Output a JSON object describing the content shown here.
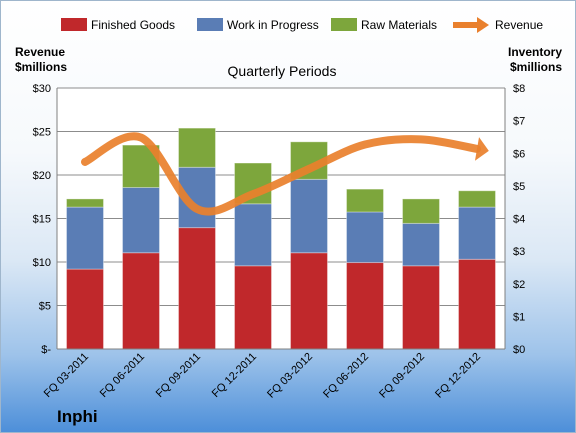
{
  "chart_data": {
    "type": "bar",
    "stacked": true,
    "title": "Quarterly Periods",
    "company": "Inphi",
    "categories": [
      "FQ 03-2011",
      "FQ 06-2011",
      "FQ 09-2011",
      "FQ 12-2011",
      "FQ 03-2012",
      "FQ 06-2012",
      "FQ 09-2012",
      "FQ 12-2012"
    ],
    "left_axis": {
      "label_line1": "Revenue",
      "label_line2": "$millions",
      "min": 0,
      "max": 30,
      "step": 5,
      "tick_labels": [
        "$-",
        "$5",
        "$10",
        "$15",
        "$20",
        "$25",
        "$30"
      ]
    },
    "right_axis": {
      "label_line1": "Inventory",
      "label_line2": "$millions",
      "min": 0,
      "max": 8,
      "step": 1,
      "tick_labels": [
        "$0",
        "$1",
        "$2",
        "$3",
        "$4",
        "$5",
        "$6",
        "$7",
        "$8"
      ]
    },
    "series": [
      {
        "name": "Finished Goods",
        "axis": "right",
        "color": "#c0282b",
        "values": [
          2.45,
          2.95,
          3.72,
          2.55,
          2.95,
          2.65,
          2.55,
          2.75
        ]
      },
      {
        "name": "Work in Progress",
        "axis": "right",
        "color": "#5a7db5",
        "values": [
          1.9,
          2.0,
          1.85,
          1.9,
          2.25,
          1.55,
          1.3,
          1.6
        ]
      },
      {
        "name": "Raw Materials",
        "axis": "right",
        "color": "#7da63c",
        "values": [
          0.25,
          1.3,
          1.2,
          1.25,
          1.15,
          0.7,
          0.75,
          0.5
        ]
      },
      {
        "name": "Revenue",
        "axis": "left",
        "type": "line",
        "color": "#e9802d",
        "values": [
          21.5,
          24.3,
          16.1,
          17.8,
          20.7,
          23.5,
          24.1,
          23.0
        ]
      }
    ],
    "grid": true,
    "legend_position": "top"
  }
}
